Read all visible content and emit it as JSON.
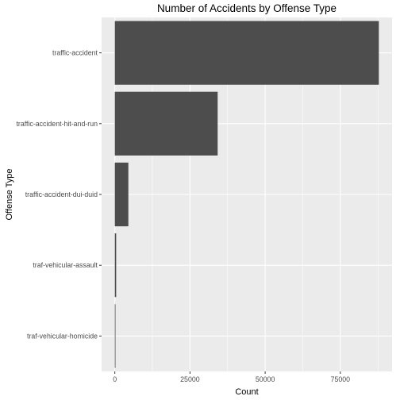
{
  "chart_data": {
    "type": "bar",
    "orientation": "horizontal",
    "title": "Number of Accidents by Offense Type",
    "xlabel": "Count",
    "ylabel": "Offense Type",
    "categories": [
      "traffic-accident",
      "traffic-accident-hit-and-run",
      "traffic-accident-dui-duid",
      "traf-vehicular-assault",
      "traf-vehicular-homicide"
    ],
    "values": [
      87800,
      34200,
      4500,
      450,
      120
    ],
    "xlim": [
      -4400,
      92200
    ],
    "xticks": [
      0,
      25000,
      50000,
      75000
    ],
    "xtick_labels": [
      "0",
      "25000",
      "50000",
      "75000"
    ],
    "grid": true,
    "colors": {
      "bar": "#4d4d4d",
      "panel": "#ebebeb",
      "grid_major": "#ffffff",
      "text": "#000000",
      "tick_text": "#4d4d4d"
    }
  }
}
